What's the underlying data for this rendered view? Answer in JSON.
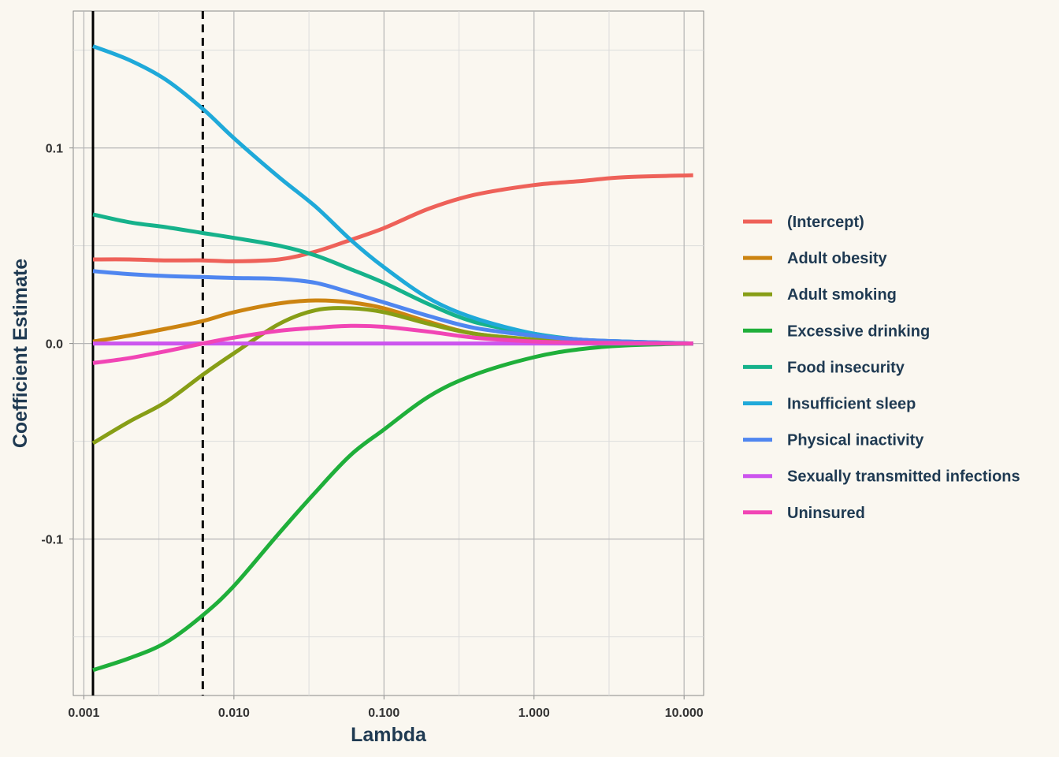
{
  "chart_data": {
    "type": "line",
    "xlabel": "Lambda",
    "ylabel": "Coefficient Estimate",
    "x_scale": "log10",
    "xlim": [
      0.00085,
      13.5
    ],
    "ylim": [
      -0.18,
      0.17
    ],
    "x_ticks": [
      {
        "value": 0.001,
        "label": "0.001"
      },
      {
        "value": 0.01,
        "label": "0.010"
      },
      {
        "value": 0.1,
        "label": "0.100"
      },
      {
        "value": 1,
        "label": "1.000"
      },
      {
        "value": 10,
        "label": "10.000"
      }
    ],
    "y_ticks": [
      {
        "value": -0.1,
        "label": "-0.1"
      },
      {
        "value": 0.0,
        "label": "0.0"
      },
      {
        "value": 0.1,
        "label": "0.1"
      }
    ],
    "grid": true,
    "legend_position": "right",
    "reference_lines": [
      {
        "x": 0.00115,
        "style": "solid",
        "color": "#000000"
      },
      {
        "x": 0.0062,
        "style": "dashed",
        "color": "#000000"
      }
    ],
    "x": [
      0.00115,
      0.002,
      0.0035,
      0.0062,
      0.01,
      0.02,
      0.035,
      0.06,
      0.1,
      0.2,
      0.4,
      1,
      2,
      4,
      11.5
    ],
    "series": [
      {
        "name": "(Intercept)",
        "color": "#ee6159",
        "values": [
          0.043,
          0.043,
          0.0425,
          0.0425,
          0.042,
          0.043,
          0.047,
          0.053,
          0.059,
          0.069,
          0.076,
          0.081,
          0.083,
          0.085,
          0.086
        ]
      },
      {
        "name": "Adult obesity",
        "color": "#cc8411",
        "values": [
          0.001,
          0.004,
          0.0075,
          0.0115,
          0.016,
          0.0205,
          0.022,
          0.021,
          0.018,
          0.011,
          0.005,
          0.002,
          0.001,
          0.0005,
          0.0
        ]
      },
      {
        "name": "Adult smoking",
        "color": "#879e16",
        "values": [
          -0.051,
          -0.04,
          -0.03,
          -0.016,
          -0.005,
          0.01,
          0.017,
          0.018,
          0.016,
          0.01,
          0.005,
          0.002,
          0.001,
          0.0005,
          0.0
        ]
      },
      {
        "name": "Excessive drinking",
        "color": "#1faf3a",
        "values": [
          -0.167,
          -0.161,
          -0.153,
          -0.139,
          -0.124,
          -0.097,
          -0.076,
          -0.057,
          -0.044,
          -0.027,
          -0.016,
          -0.007,
          -0.003,
          -0.001,
          0.0
        ]
      },
      {
        "name": "Food insecurity",
        "color": "#16b28b",
        "values": [
          0.066,
          0.062,
          0.0595,
          0.0565,
          0.054,
          0.05,
          0.045,
          0.038,
          0.031,
          0.02,
          0.011,
          0.005,
          0.002,
          0.001,
          0.0
        ]
      },
      {
        "name": "Insufficient sleep",
        "color": "#1fa9d9",
        "values": [
          0.152,
          0.145,
          0.135,
          0.12,
          0.105,
          0.085,
          0.07,
          0.053,
          0.039,
          0.023,
          0.013,
          0.005,
          0.002,
          0.001,
          0.0
        ]
      },
      {
        "name": "Physical inactivity",
        "color": "#4f86f0",
        "values": [
          0.037,
          0.0355,
          0.0345,
          0.034,
          0.0335,
          0.033,
          0.031,
          0.026,
          0.021,
          0.014,
          0.008,
          0.004,
          0.002,
          0.001,
          0.0
        ]
      },
      {
        "name": "Sexually transmitted infections",
        "color": "#cc55ee",
        "values": [
          0.0,
          0.0,
          0.0,
          0.0,
          0.0,
          0.0,
          0.0,
          0.0,
          0.0,
          0.0,
          0.0,
          0.0,
          0.0,
          0.0,
          0.0
        ]
      },
      {
        "name": "Uninsured",
        "color": "#f145b5",
        "values": [
          -0.01,
          -0.0075,
          -0.004,
          0.0,
          0.003,
          0.0065,
          0.008,
          0.009,
          0.0085,
          0.006,
          0.003,
          0.001,
          0.0005,
          0.0002,
          0.0
        ]
      }
    ]
  }
}
